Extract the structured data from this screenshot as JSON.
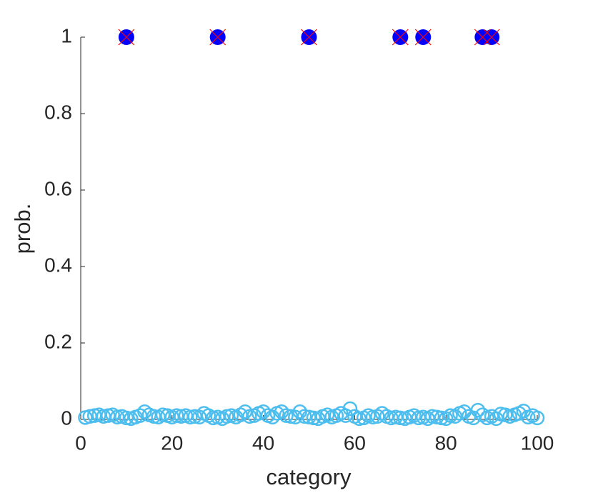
{
  "chart_data": {
    "type": "scatter",
    "xlabel": "category",
    "ylabel": "prob.",
    "xlim": [
      0,
      100
    ],
    "ylim": [
      0,
      1
    ],
    "xticks": [
      0,
      20,
      40,
      60,
      80,
      100
    ],
    "yticks": [
      0,
      0.2,
      0.4,
      0.6,
      0.8,
      1
    ],
    "series": [
      {
        "marker": "open-circle",
        "color": "#4dbeee",
        "x": [
          1,
          2,
          3,
          4,
          5,
          6,
          7,
          8,
          9,
          10,
          11,
          12,
          13,
          14,
          15,
          16,
          17,
          18,
          19,
          20,
          21,
          22,
          23,
          24,
          25,
          26,
          27,
          28,
          29,
          30,
          31,
          32,
          33,
          34,
          35,
          36,
          37,
          38,
          39,
          40,
          41,
          42,
          43,
          44,
          45,
          46,
          47,
          48,
          49,
          50,
          51,
          52,
          53,
          54,
          55,
          56,
          57,
          58,
          59,
          60,
          61,
          62,
          63,
          64,
          65,
          66,
          67,
          68,
          69,
          70,
          71,
          72,
          73,
          74,
          75,
          76,
          77,
          78,
          79,
          80,
          81,
          82,
          83,
          84,
          85,
          86,
          87,
          88,
          89,
          90,
          91,
          92,
          93,
          94,
          95,
          96,
          97,
          98,
          99,
          100
        ],
        "values": [
          0.005,
          0.008,
          0.01,
          0.012,
          0.008,
          0.01,
          0.012,
          0.006,
          0.008,
          0.004,
          0.002,
          0.006,
          0.01,
          0.02,
          0.012,
          0.008,
          0.006,
          0.012,
          0.01,
          0.006,
          0.01,
          0.008,
          0.01,
          0.006,
          0.008,
          0.006,
          0.016,
          0.01,
          0.004,
          0.006,
          0.002,
          0.008,
          0.01,
          0.006,
          0.012,
          0.02,
          0.008,
          0.01,
          0.016,
          0.02,
          0.01,
          0.006,
          0.016,
          0.02,
          0.01,
          0.008,
          0.006,
          0.02,
          0.008,
          0.006,
          0.004,
          0.002,
          0.008,
          0.012,
          0.006,
          0.01,
          0.016,
          0.01,
          0.028,
          0.008,
          0.002,
          0.004,
          0.01,
          0.006,
          0.008,
          0.016,
          0.008,
          0.004,
          0.006,
          0.004,
          0.002,
          0.006,
          0.01,
          0.004,
          0.006,
          0.002,
          0.008,
          0.006,
          0.004,
          0.002,
          0.01,
          0.008,
          0.016,
          0.02,
          0.008,
          0.004,
          0.024,
          0.012,
          0.004,
          0.008,
          0.002,
          0.014,
          0.012,
          0.008,
          0.012,
          0.016,
          0.022,
          0.006,
          0.01,
          0.004
        ]
      },
      {
        "marker": "filled-circle",
        "color": "#0000ff",
        "x": [
          10,
          30,
          50,
          70,
          75,
          88,
          90
        ],
        "values": [
          1,
          1,
          1,
          1,
          1,
          1,
          1
        ]
      },
      {
        "marker": "cross",
        "color": "#ff0000",
        "x": [
          10,
          30,
          50,
          70,
          75,
          88,
          90
        ],
        "values": [
          1,
          1,
          1,
          1,
          1,
          1,
          1
        ]
      }
    ]
  }
}
